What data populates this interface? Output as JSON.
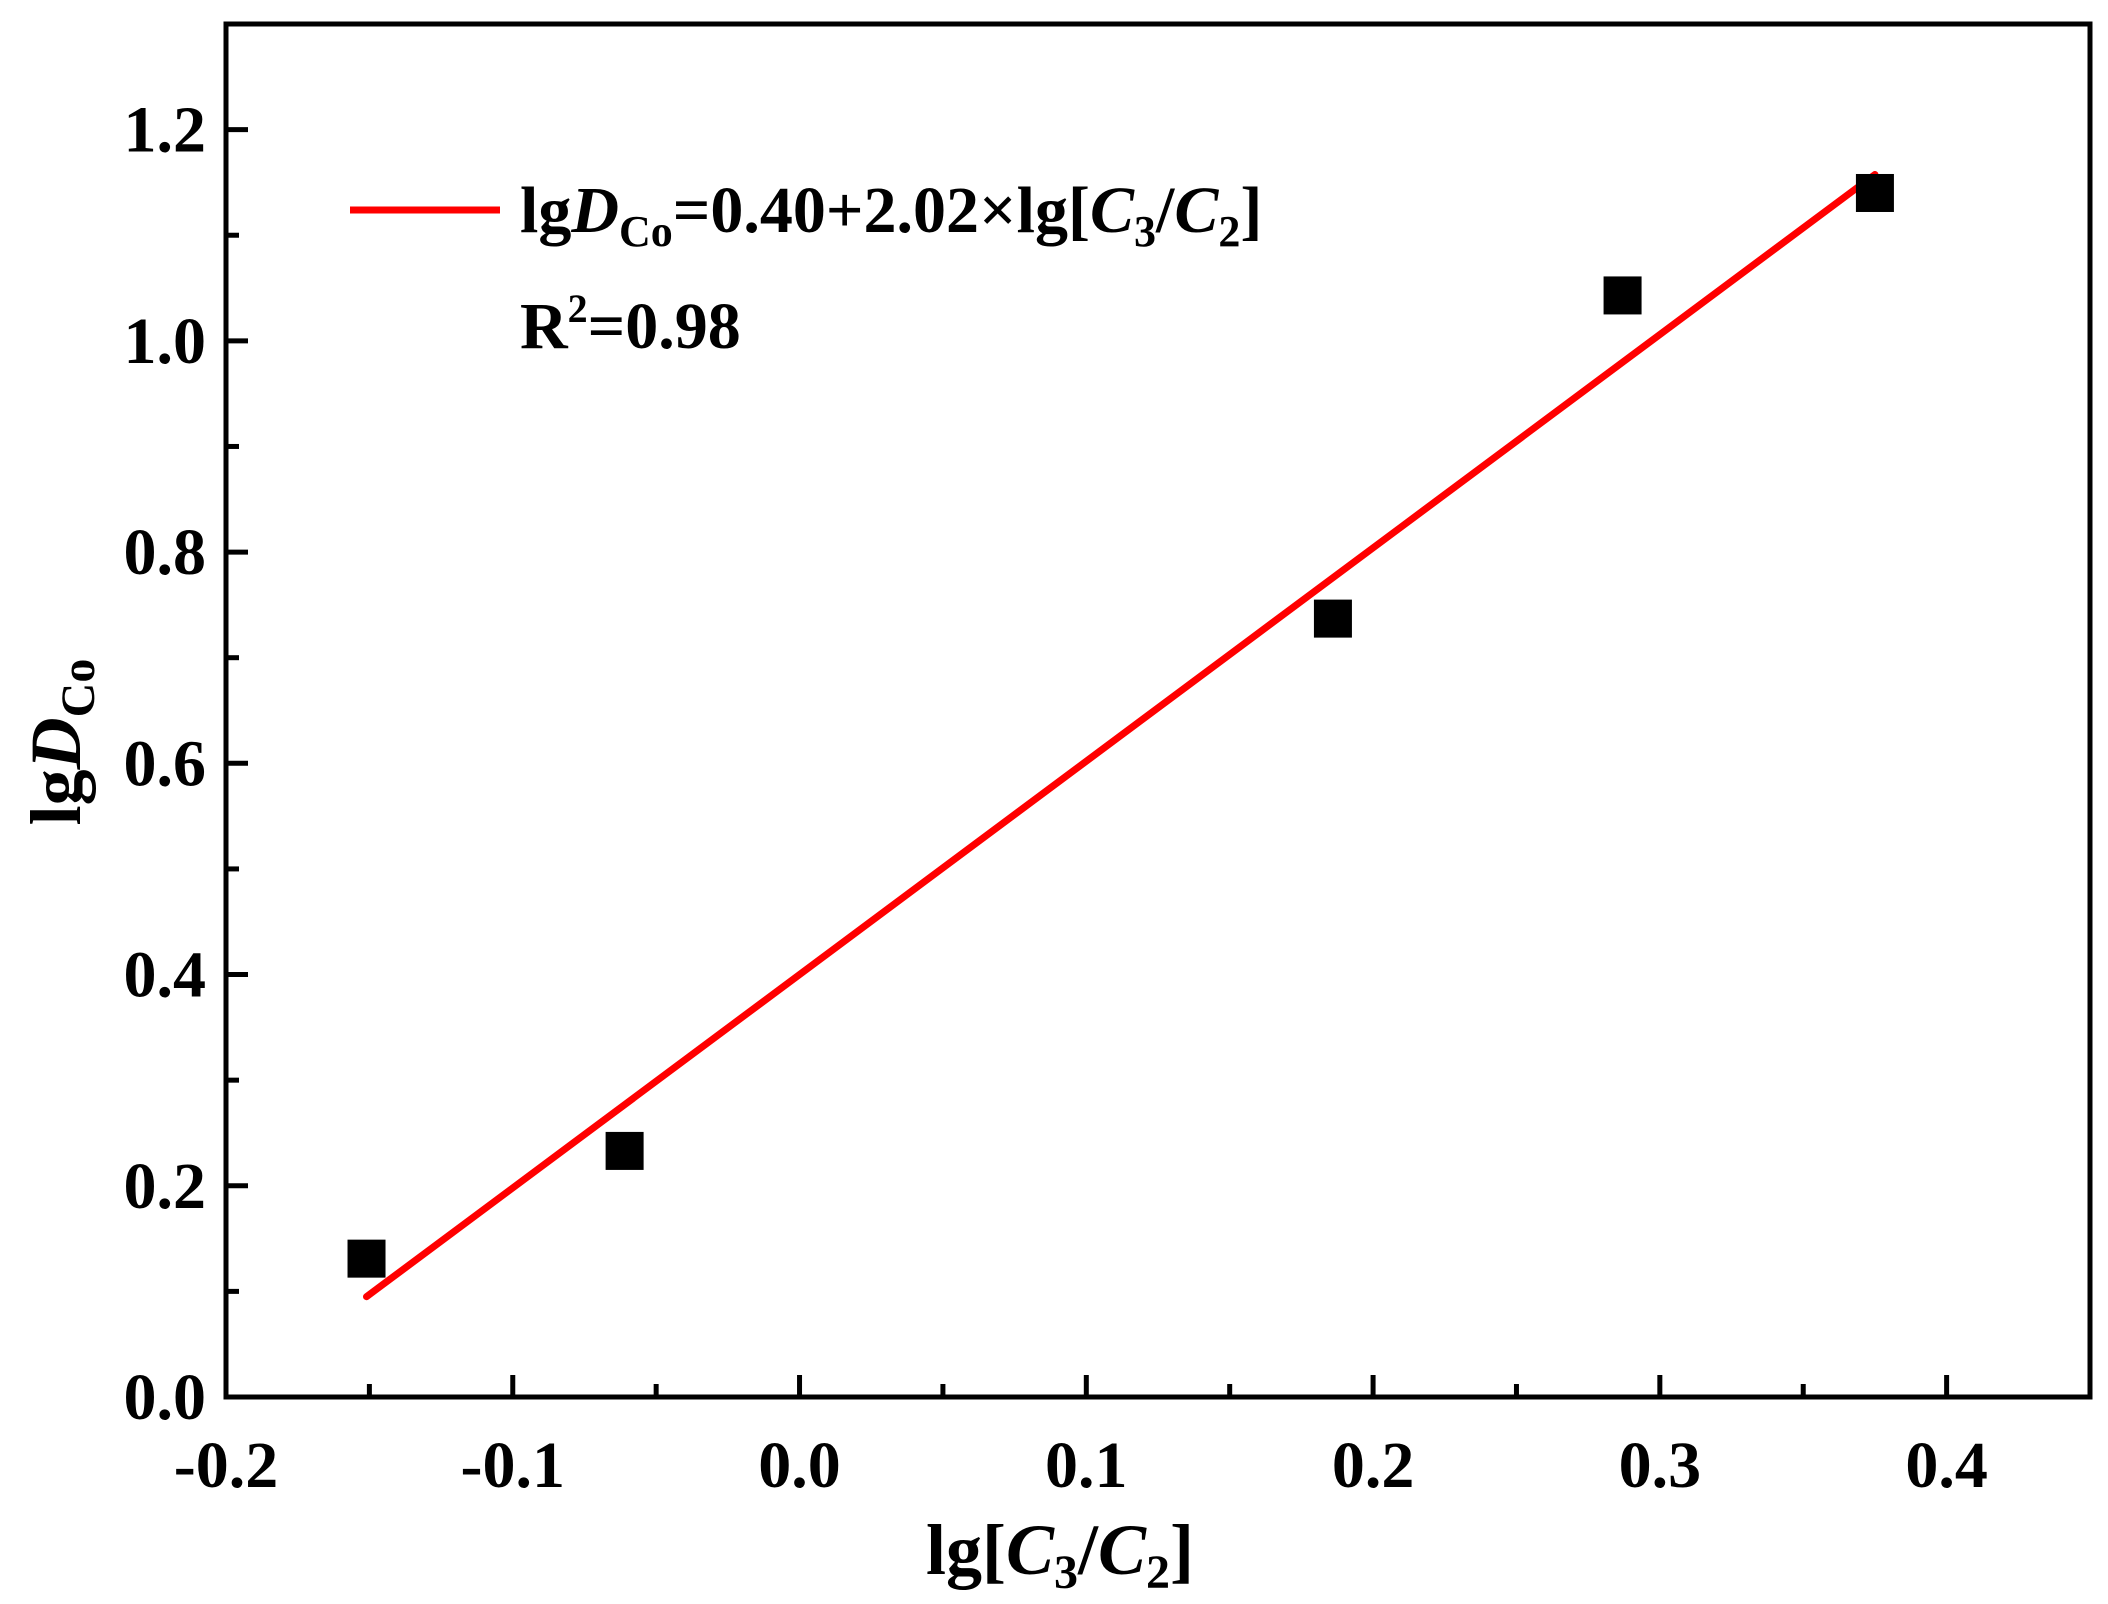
{
  "chart_data": {
    "type": "scatter",
    "x": [
      -0.151,
      -0.061,
      0.186,
      0.287,
      0.375
    ],
    "y": [
      0.131,
      0.233,
      0.737,
      1.043,
      1.14
    ],
    "marker": "filled-square",
    "marker_color": "#000000",
    "xlim": [
      -0.2,
      0.45
    ],
    "ylim": [
      0.0,
      1.3
    ],
    "x_major_ticks": [
      -0.2,
      -0.1,
      0.0,
      0.1,
      0.2,
      0.3,
      0.4
    ],
    "x_tick_labels": [
      "-0.2",
      "-0.1",
      "0.0",
      "0.1",
      "0.2",
      "0.3",
      "0.4"
    ],
    "y_major_ticks": [
      0.0,
      0.2,
      0.4,
      0.6,
      0.8,
      1.0,
      1.2
    ],
    "y_tick_labels": [
      "0.0",
      "0.2",
      "0.4",
      "0.6",
      "0.8",
      "1.0",
      "1.2"
    ],
    "xlabel": {
      "prefix": "lg[",
      "var1": "C",
      "sub1": "3",
      "slash": "/",
      "var2": "C",
      "sub2": "2",
      "suffix": "]"
    },
    "ylabel": {
      "prefix": "lg",
      "var": "D",
      "sub": "Co"
    },
    "fit": {
      "intercept": 0.4,
      "slope": 2.02,
      "x_range": [
        -0.151,
        0.375
      ],
      "color": "#ff0000",
      "equation": {
        "prefix": "lg",
        "var": "D",
        "sub": "Co",
        "mid": "=0.40+2.02×lg[",
        "var1": "C",
        "sub1": "3",
        "slash": "/",
        "var2": "C",
        "sub2": "2",
        "suffix": "]"
      },
      "r2": {
        "base": "R",
        "sup": "2",
        "value": "=0.98"
      }
    },
    "legend_position": "top-left",
    "grid": false
  }
}
